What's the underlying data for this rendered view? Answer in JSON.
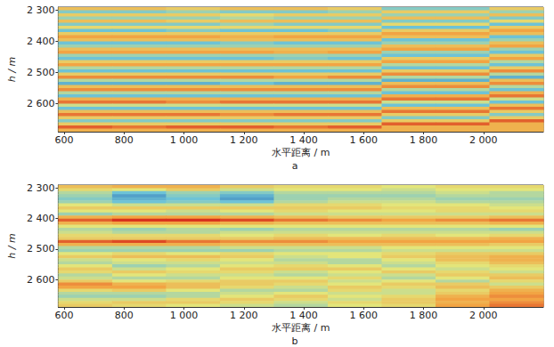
{
  "chart_data": [
    {
      "type": "heatmap",
      "title": "a",
      "xlabel": "水平距离 / m",
      "ylabel": "h / m",
      "xlim": [
        580,
        2200
      ],
      "xticks": [
        600,
        800,
        {
          "value": 1000,
          "label": "1 000"
        },
        {
          "value": 1200,
          "label": "1 200"
        },
        {
          "value": 1400,
          "label": "1 400"
        },
        {
          "value": 1600,
          "label": "1 600"
        },
        {
          "value": 1800,
          "label": "1 800"
        },
        {
          "value": 2000,
          "label": "2 000"
        }
      ],
      "ylim": [
        2290,
        2690
      ],
      "yticks": [
        {
          "value": 2300,
          "label": "2 300"
        },
        {
          "value": 2400,
          "label": "2 400"
        },
        {
          "value": 2500,
          "label": "2 500"
        },
        {
          "value": 2600,
          "label": "2 600"
        }
      ],
      "clim": [
        -10,
        10
      ],
      "x": [
        670,
        850,
        1030,
        1210,
        1390,
        1570,
        1750,
        1930,
        2110
      ],
      "y": [
        2295,
        2305,
        2315,
        2325,
        2335,
        2345,
        2355,
        2365,
        2375,
        2385,
        2395,
        2405,
        2415,
        2425,
        2435,
        2445,
        2455,
        2465,
        2475,
        2485,
        2495,
        2505,
        2515,
        2525,
        2535,
        2545,
        2555,
        2565,
        2575,
        2585,
        2595,
        2605,
        2615,
        2625,
        2635,
        2645,
        2655,
        2665,
        2675,
        2685
      ],
      "cells": [
        [
          3,
          3,
          2,
          3,
          3,
          2,
          -4,
          -4,
          2
        ],
        [
          -4,
          -4,
          -3,
          -4,
          -4,
          -3,
          2,
          2,
          -3
        ],
        [
          2,
          2,
          2,
          1,
          2,
          2,
          -3,
          -3,
          3
        ],
        [
          -3,
          -3,
          -3,
          -2,
          -3,
          -3,
          3,
          3,
          -4
        ],
        [
          3,
          3,
          2,
          3,
          3,
          3,
          -4,
          -4,
          1
        ],
        [
          -4,
          -4,
          -4,
          -3,
          -4,
          -4,
          1,
          1,
          -5
        ],
        [
          1,
          1,
          1,
          1,
          1,
          1,
          -5,
          -5,
          2
        ],
        [
          -5,
          -5,
          -4,
          -5,
          -5,
          -4,
          2,
          2,
          5
        ],
        [
          2,
          2,
          2,
          2,
          2,
          2,
          5,
          5,
          3
        ],
        [
          5,
          5,
          5,
          4,
          5,
          5,
          3,
          3,
          -5
        ],
        [
          3,
          3,
          3,
          3,
          3,
          3,
          -5,
          -5,
          -3
        ],
        [
          -5,
          -5,
          -5,
          -4,
          -5,
          -5,
          -3,
          -3,
          3
        ],
        [
          -3,
          -3,
          -3,
          -3,
          -3,
          -3,
          3,
          3,
          5
        ],
        [
          3,
          3,
          3,
          3,
          3,
          3,
          5,
          5,
          -3
        ],
        [
          5,
          5,
          5,
          5,
          4,
          5,
          -3,
          -3,
          -5
        ],
        [
          -3,
          -3,
          -3,
          -3,
          -3,
          -3,
          -5,
          -5,
          2
        ],
        [
          -5,
          -5,
          -5,
          -5,
          -4,
          -5,
          2,
          2,
          5
        ],
        [
          2,
          2,
          2,
          2,
          2,
          2,
          5,
          5,
          -2
        ],
        [
          5,
          5,
          5,
          5,
          5,
          5,
          -2,
          -2,
          -5
        ],
        [
          -2,
          -2,
          -2,
          -2,
          -2,
          -2,
          -5,
          -5,
          2
        ],
        [
          -5,
          -5,
          -5,
          -5,
          -5,
          -5,
          2,
          2,
          6
        ],
        [
          2,
          2,
          2,
          2,
          2,
          2,
          6,
          6,
          -2
        ],
        [
          6,
          6,
          6,
          6,
          5,
          6,
          -2,
          -2,
          -6
        ],
        [
          -2,
          -2,
          -2,
          -2,
          -2,
          -2,
          -6,
          -6,
          3
        ],
        [
          -6,
          -6,
          -6,
          -5,
          -6,
          -6,
          3,
          3,
          6
        ],
        [
          3,
          3,
          3,
          3,
          3,
          3,
          6,
          6,
          -2
        ],
        [
          6,
          6,
          6,
          6,
          6,
          6,
          -2,
          -2,
          -5
        ],
        [
          -2,
          -2,
          -2,
          -2,
          -2,
          -2,
          -5,
          -5,
          4
        ],
        [
          -5,
          -5,
          -5,
          -5,
          -5,
          -5,
          4,
          4,
          7
        ],
        [
          4,
          4,
          4,
          4,
          4,
          4,
          7,
          7,
          -1
        ],
        [
          7,
          7,
          6,
          7,
          7,
          7,
          -1,
          -1,
          -5
        ],
        [
          -1,
          -1,
          -1,
          -1,
          -1,
          -1,
          -5,
          -5,
          3
        ],
        [
          -5,
          -5,
          -5,
          -5,
          -5,
          -5,
          3,
          3,
          7
        ],
        [
          3,
          3,
          3,
          3,
          3,
          3,
          7,
          7,
          2
        ],
        [
          7,
          7,
          7,
          6,
          7,
          7,
          2,
          2,
          -4
        ],
        [
          2,
          2,
          2,
          2,
          2,
          2,
          -4,
          -4,
          2
        ],
        [
          -4,
          -4,
          -4,
          -4,
          -4,
          -4,
          2,
          2,
          8
        ],
        [
          2,
          2,
          2,
          2,
          2,
          2,
          8,
          8,
          4
        ],
        [
          8,
          7,
          8,
          8,
          7,
          8,
          4,
          4,
          4
        ],
        [
          4,
          4,
          4,
          4,
          4,
          4,
          4,
          4,
          4
        ]
      ]
    },
    {
      "type": "heatmap",
      "title": "b",
      "xlabel": "水平距离 / m",
      "ylabel": "h / m",
      "xlim": [
        580,
        2200
      ],
      "xticks": [
        600,
        800,
        {
          "value": 1000,
          "label": "1 000"
        },
        {
          "value": 1200,
          "label": "1 200"
        },
        {
          "value": 1400,
          "label": "1 400"
        },
        {
          "value": 1600,
          "label": "1 600"
        },
        {
          "value": 1800,
          "label": "1 800"
        },
        {
          "value": 2000,
          "label": "2 000"
        }
      ],
      "ylim": [
        2290,
        2690
      ],
      "yticks": [
        {
          "value": 2300,
          "label": "2 300"
        },
        {
          "value": 2400,
          "label": "2 400"
        },
        {
          "value": 2500,
          "label": "2 500"
        },
        {
          "value": 2600,
          "label": "2 600"
        }
      ],
      "clim": [
        -10,
        10
      ],
      "x": [
        670,
        850,
        1030,
        1210,
        1390,
        1570,
        1750,
        1930,
        2110
      ],
      "y": [
        2295,
        2305,
        2315,
        2325,
        2335,
        2345,
        2355,
        2365,
        2375,
        2385,
        2395,
        2405,
        2415,
        2425,
        2435,
        2445,
        2455,
        2465,
        2475,
        2485,
        2495,
        2505,
        2515,
        2525,
        2535,
        2545,
        2555,
        2565,
        2575,
        2585,
        2595,
        2605,
        2615,
        2625,
        2635,
        2645,
        2655,
        2665,
        2675,
        2685
      ],
      "cells": [
        [
          3,
          4,
          4,
          2,
          1,
          1,
          0,
          1,
          1
        ],
        [
          1,
          0,
          2,
          -1,
          0,
          0,
          -1,
          0,
          0
        ],
        [
          -2,
          -5,
          -3,
          -4,
          -2,
          -2,
          -2,
          -1,
          -2
        ],
        [
          -3,
          -7,
          -4,
          -6,
          -3,
          -3,
          -3,
          -2,
          -2
        ],
        [
          -4,
          -6,
          -5,
          -7,
          -3,
          -2,
          -2,
          -3,
          -3
        ],
        [
          -3,
          -5,
          -4,
          -5,
          -2,
          -1,
          -1,
          -2,
          -2
        ],
        [
          0,
          -1,
          -1,
          -1,
          1,
          1,
          0,
          0,
          -1
        ],
        [
          2,
          2,
          2,
          2,
          2,
          2,
          1,
          1,
          0
        ],
        [
          0,
          0,
          -1,
          0,
          1,
          0,
          0,
          1,
          1
        ],
        [
          -3,
          -2,
          -2,
          -2,
          -1,
          -1,
          -1,
          -1,
          -1
        ],
        [
          4,
          5,
          5,
          4,
          3,
          2,
          2,
          2,
          3
        ],
        [
          8,
          10,
          10,
          9,
          7,
          6,
          5,
          6,
          7
        ],
        [
          4,
          5,
          5,
          4,
          3,
          3,
          3,
          3,
          4
        ],
        [
          0,
          0,
          0,
          0,
          0,
          0,
          0,
          0,
          0
        ],
        [
          -2,
          -3,
          -2,
          -3,
          -2,
          -2,
          -2,
          -2,
          -3
        ],
        [
          -1,
          -2,
          -2,
          -1,
          -1,
          -1,
          -1,
          -1,
          -1
        ],
        [
          1,
          1,
          1,
          0,
          1,
          0,
          1,
          0,
          1
        ],
        [
          2,
          2,
          2,
          2,
          3,
          3,
          3,
          3,
          4
        ],
        [
          8,
          9,
          7,
          6,
          6,
          5,
          5,
          5,
          5
        ],
        [
          4,
          4,
          4,
          3,
          3,
          3,
          3,
          3,
          2
        ],
        [
          -2,
          -2,
          -2,
          -1,
          -1,
          -1,
          0,
          0,
          0
        ],
        [
          -3,
          -3,
          -3,
          -3,
          -2,
          -2,
          -1,
          -1,
          -1
        ],
        [
          0,
          1,
          0,
          1,
          0,
          0,
          1,
          2,
          2
        ],
        [
          2,
          3,
          3,
          2,
          -1,
          0,
          2,
          3,
          4
        ],
        [
          -1,
          0,
          1,
          0,
          -2,
          -2,
          0,
          3,
          4
        ],
        [
          -2,
          -1,
          -1,
          -1,
          -1,
          -2,
          -1,
          1,
          3
        ],
        [
          0,
          -3,
          -2,
          0,
          1,
          0,
          -2,
          0,
          1
        ],
        [
          2,
          -1,
          0,
          2,
          2,
          2,
          0,
          -1,
          0
        ],
        [
          1,
          2,
          1,
          1,
          -1,
          0,
          2,
          1,
          -1
        ],
        [
          -2,
          0,
          -1,
          -1,
          -2,
          -1,
          -1,
          2,
          2
        ],
        [
          -1,
          -2,
          -2,
          0,
          0,
          1,
          -2,
          0,
          3
        ],
        [
          2,
          0,
          1,
          2,
          2,
          -1,
          0,
          -2,
          1
        ],
        [
          6,
          4,
          3,
          2,
          1,
          0,
          2,
          2,
          -1
        ],
        [
          5,
          5,
          3,
          1,
          -1,
          2,
          1,
          3,
          2
        ],
        [
          1,
          2,
          0,
          -2,
          -2,
          1,
          -1,
          1,
          4
        ],
        [
          -2,
          -2,
          -2,
          -1,
          0,
          -1,
          -1,
          2,
          5
        ],
        [
          -3,
          -3,
          -2,
          0,
          2,
          0,
          1,
          4,
          6
        ],
        [
          -1,
          -1,
          1,
          2,
          1,
          -1,
          2,
          5,
          5
        ],
        [
          1,
          2,
          2,
          1,
          -1,
          1,
          2,
          4,
          6
        ],
        [
          2,
          1,
          0,
          -1,
          -2,
          0,
          1,
          5,
          7
        ]
      ]
    }
  ]
}
